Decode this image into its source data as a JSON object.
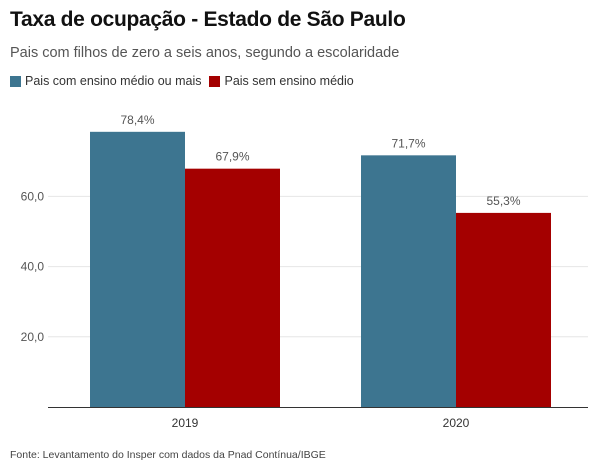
{
  "title": "Taxa de ocupação - Estado de São Paulo",
  "subtitle": "Pais com filhos de zero a seis anos, segundo a escolaridade",
  "source": "Fonte: Levantamento do Insper com dados da Pnad Contínua/IBGE",
  "legend": [
    {
      "label": "Pais com ensino médio ou mais",
      "color": "#3d7590"
    },
    {
      "label": "Pais sem ensino médio",
      "color": "#a40000"
    }
  ],
  "chart_data": {
    "type": "bar",
    "title": "Taxa de ocupação - Estado de São Paulo",
    "subtitle": "Pais com filhos de zero a seis anos, segundo a escolaridade",
    "categories": [
      "2019",
      "2020"
    ],
    "series": [
      {
        "name": "Pais com ensino médio ou mais",
        "color": "#3d7590",
        "values": [
          78.4,
          71.7
        ],
        "labels": [
          "78,4%",
          "71,7%"
        ]
      },
      {
        "name": "Pais sem ensino médio",
        "color": "#a40000",
        "values": [
          67.9,
          55.3
        ],
        "labels": [
          "67,9%",
          "55,3%"
        ]
      }
    ],
    "yticks": [
      20,
      40,
      60
    ],
    "ytick_labels": [
      "20,0",
      "40,0",
      "60,0"
    ],
    "ylim": [
      0,
      80
    ],
    "grid": true,
    "legend_position": "top-left"
  }
}
